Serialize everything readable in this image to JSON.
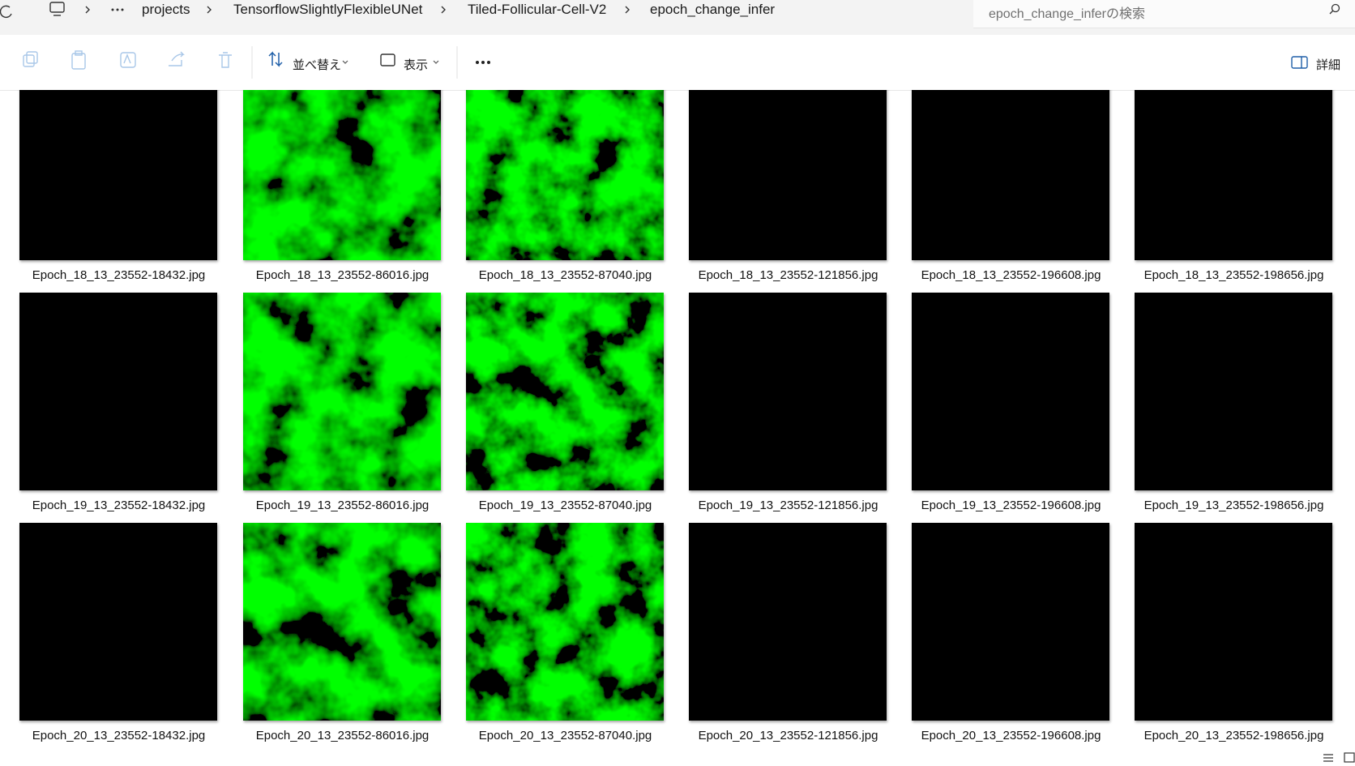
{
  "breadcrumb": [
    "projects",
    "TensorflowSlightlyFlexibleUNet",
    "Tiled-Follicular-Cell-V2",
    "epoch_change_infer"
  ],
  "search_placeholder": "epoch_change_inferの検索",
  "toolbar": {
    "sort": "並べ替え",
    "view": "表示",
    "details": "詳細"
  },
  "files": [
    [
      "Epoch_18_13_23552-18432.jpg",
      "Epoch_18_13_23552-86016.jpg",
      "Epoch_18_13_23552-87040.jpg",
      "Epoch_18_13_23552-121856.jpg",
      "Epoch_18_13_23552-196608.jpg",
      "Epoch_18_13_23552-198656.jpg"
    ],
    [
      "Epoch_19_13_23552-18432.jpg",
      "Epoch_19_13_23552-86016.jpg",
      "Epoch_19_13_23552-87040.jpg",
      "Epoch_19_13_23552-121856.jpg",
      "Epoch_19_13_23552-196608.jpg",
      "Epoch_19_13_23552-198656.jpg"
    ],
    [
      "Epoch_20_13_23552-18432.jpg",
      "Epoch_20_13_23552-86016.jpg",
      "Epoch_20_13_23552-87040.jpg",
      "Epoch_20_13_23552-121856.jpg",
      "Epoch_20_13_23552-196608.jpg",
      "Epoch_20_13_23552-198656.jpg"
    ]
  ]
}
